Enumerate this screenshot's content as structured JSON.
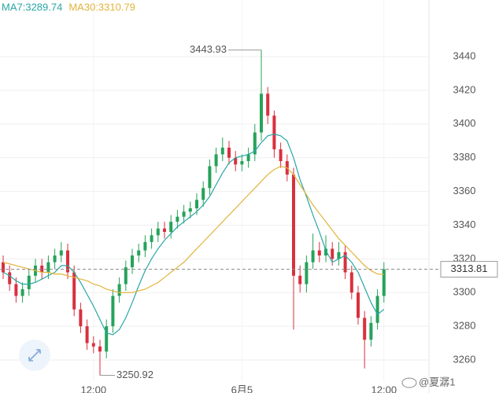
{
  "chart_data": {
    "type": "candlestick",
    "legend": [
      {
        "text": "MA7:3289.74",
        "color": "#2aa6a6"
      },
      {
        "text": "MA30:3310.79",
        "color": "#e2b43c"
      }
    ],
    "up_color": "#25a35a",
    "down_color": "#d9303e",
    "candles": {
      "open": [
        3318,
        3312,
        3305,
        3298,
        3302,
        3310,
        3316,
        3312,
        3318,
        3322,
        3325,
        3312,
        3290,
        3280,
        3270,
        3268,
        3265,
        3280,
        3298,
        3305,
        3315,
        3322,
        3325,
        3330,
        3334,
        3338,
        3336,
        3342,
        3345,
        3348,
        3350,
        3355,
        3362,
        3375,
        3382,
        3386,
        3380,
        3376,
        3378,
        3382,
        3395,
        3418,
        3405,
        3385,
        3378,
        3370,
        3310,
        3305,
        3318,
        3325,
        3322,
        3326,
        3320,
        3324,
        3312,
        3300,
        3285,
        3272,
        3282,
        3298
      ],
      "high": [
        3322,
        3316,
        3309,
        3306,
        3314,
        3320,
        3320,
        3322,
        3326,
        3330,
        3329,
        3316,
        3294,
        3284,
        3274,
        3272,
        3284,
        3302,
        3309,
        3319,
        3326,
        3329,
        3334,
        3338,
        3342,
        3342,
        3346,
        3349,
        3352,
        3354,
        3359,
        3366,
        3379,
        3386,
        3392,
        3390,
        3384,
        3382,
        3386,
        3400,
        3443.93,
        3422,
        3408,
        3389,
        3382,
        3374,
        3316,
        3322,
        3335,
        3330,
        3334,
        3330,
        3330,
        3328,
        3316,
        3304,
        3289,
        3286,
        3302,
        3318
      ],
      "low": [
        3308,
        3301,
        3294,
        3294,
        3298,
        3306,
        3308,
        3308,
        3314,
        3318,
        3308,
        3286,
        3276,
        3266,
        3264,
        3250.92,
        3261,
        3276,
        3294,
        3301,
        3311,
        3318,
        3321,
        3326,
        3330,
        3332,
        3332,
        3338,
        3341,
        3344,
        3346,
        3351,
        3358,
        3371,
        3378,
        3376,
        3372,
        3372,
        3374,
        3378,
        3390,
        3400,
        3380,
        3374,
        3366,
        3278,
        3300,
        3300,
        3314,
        3318,
        3318,
        3316,
        3316,
        3308,
        3296,
        3281,
        3255,
        3268,
        3278,
        3294
      ],
      "close": [
        3312,
        3305,
        3298,
        3302,
        3310,
        3316,
        3312,
        3318,
        3322,
        3325,
        3312,
        3290,
        3280,
        3270,
        3268,
        3265,
        3280,
        3298,
        3305,
        3315,
        3322,
        3325,
        3330,
        3334,
        3338,
        3336,
        3342,
        3345,
        3348,
        3350,
        3355,
        3362,
        3375,
        3382,
        3386,
        3380,
        3376,
        3378,
        3382,
        3395,
        3418,
        3405,
        3385,
        3378,
        3370,
        3310,
        3305,
        3318,
        3325,
        3322,
        3326,
        3320,
        3324,
        3312,
        3300,
        3285,
        3272,
        3282,
        3298,
        3313.81
      ]
    },
    "series": [
      {
        "name": "MA7",
        "color": "#2aa6a6",
        "values": [
          3312,
          3310,
          3307,
          3305,
          3305,
          3306,
          3308,
          3310,
          3312,
          3316,
          3316,
          3312,
          3306,
          3299,
          3292,
          3284,
          3276,
          3275,
          3278,
          3285,
          3294,
          3304,
          3313,
          3320,
          3326,
          3331,
          3335,
          3339,
          3342,
          3345,
          3348,
          3352,
          3357,
          3364,
          3371,
          3377,
          3380,
          3381,
          3382,
          3384,
          3389,
          3393,
          3394,
          3393,
          3390,
          3380,
          3367,
          3357,
          3346,
          3336,
          3325,
          3318,
          3320,
          3322,
          3318,
          3312,
          3303,
          3294,
          3287,
          3290
        ]
      },
      {
        "name": "MA30",
        "color": "#e2b43c",
        "values": [
          3318,
          3317,
          3316,
          3315,
          3314,
          3313,
          3312,
          3312,
          3311,
          3311,
          3310,
          3309,
          3308,
          3307,
          3305,
          3304,
          3302,
          3301,
          3300,
          3300,
          3300,
          3301,
          3302,
          3304,
          3306,
          3309,
          3312,
          3315,
          3318,
          3322,
          3326,
          3330,
          3334,
          3338,
          3342,
          3346,
          3350,
          3354,
          3358,
          3362,
          3366,
          3370,
          3373,
          3375,
          3374,
          3370,
          3364,
          3358,
          3352,
          3347,
          3342,
          3337,
          3332,
          3328,
          3324,
          3320,
          3316,
          3313,
          3311,
          3310.79
        ]
      }
    ],
    "ylim": [
      3240.4,
      3473.6
    ],
    "yticks": [
      3260,
      3280,
      3300,
      3320,
      3340,
      3360,
      3380,
      3400,
      3420,
      3440
    ],
    "xticks": [
      {
        "value": 14,
        "label": "12:00"
      },
      {
        "value": 37,
        "label": "6月5"
      },
      {
        "value": 59,
        "label": "12:00"
      }
    ],
    "grid": true,
    "watermark": "@夏潺1"
  }
}
